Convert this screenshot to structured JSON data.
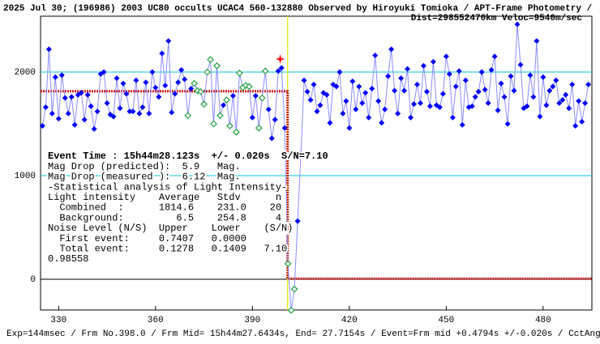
{
  "chart_data": {
    "type": "scatter",
    "title": "2025 Jul 30; (196986) 2003 UC80 occults UCAC4 560-132880 Observed by Hiroyuki Tomioka / APT-Frame Photometry /",
    "subtitle": "Dist=298552470km Veloc=9540m/sec",
    "footer": "Exp=144msec / Frm No.398.0 / Frm Mid= 15h44m27.6434s, End= 27.7154s / Event=Frm mid +0.4794s +/-0.020s / CctAngle=0.0deg",
    "annotations": [
      "Event Time : 15h44m28.123s  +/- 0.020s  S/N=7.10",
      "Mag Drop (predicted):  5.9   Mag.",
      "Mag Drop (measured ):  6.12  Mag.",
      "-Statistical analysis of Light Intensity-",
      "Light intensity    Average   Stdv      n",
      "  Combined  :      1814.6    231.0    20",
      "  Background:         6.5    254.8     4",
      "Noise Level (N/S)  Upper    Lower    (S/N)",
      "  First event:     0.7407   0.0000",
      "  Total event:     0.1278   0.1409   7.10",
      "0.98558"
    ],
    "x": [
      325,
      326,
      327,
      328,
      329,
      330,
      331,
      332,
      333,
      334,
      335,
      336,
      337,
      338,
      339,
      340,
      341,
      342,
      343,
      344,
      345,
      346,
      347,
      348,
      349,
      350,
      351,
      352,
      353,
      354,
      355,
      356,
      357,
      358,
      359,
      360,
      361,
      362,
      363,
      364,
      365,
      366,
      367,
      368,
      369,
      370,
      371,
      372,
      373,
      374,
      375,
      376,
      377,
      378,
      379,
      380,
      381,
      382,
      383,
      384,
      385,
      386,
      387,
      388,
      389,
      390,
      391,
      392,
      393,
      394,
      395,
      396,
      397,
      398,
      399,
      400,
      401,
      402,
      403,
      404,
      405,
      406,
      407,
      408,
      409,
      410,
      411,
      412,
      413,
      414,
      415,
      416,
      417,
      418,
      419,
      420,
      421,
      422,
      423,
      424,
      425,
      426,
      427,
      428,
      429,
      430,
      431,
      432,
      433,
      434,
      435,
      436,
      437,
      438,
      439,
      440,
      441,
      442,
      443,
      444,
      445,
      446,
      447,
      448,
      449,
      450,
      451,
      452,
      453,
      454,
      455,
      456,
      457,
      458,
      459,
      460,
      461,
      462,
      463,
      464,
      465,
      466,
      467,
      468,
      469,
      470,
      471,
      472,
      473,
      474,
      475,
      476,
      477,
      478,
      479,
      480,
      481,
      482,
      483,
      484,
      485,
      486,
      487,
      488,
      489,
      490,
      491,
      492,
      493,
      494
    ],
    "series": [
      {
        "color": "#0000ff",
        "line_color": "#8c8cff",
        "values": [
          1480,
          1660,
          2220,
          1600,
          1950,
          1550,
          1970,
          1750,
          1600,
          1760,
          1490,
          1780,
          1800,
          1540,
          1780,
          1670,
          1450,
          1620,
          1980,
          2000,
          1700,
          1590,
          1570,
          1940,
          1650,
          1890,
          1790,
          1620,
          1620,
          1920,
          1600,
          1660,
          1900,
          1600,
          2000,
          1850,
          1760,
          2180,
          1870,
          2300,
          1610,
          1790,
          1900,
          2020,
          1930,
          null,
          1840,
          null,
          null,
          null,
          null,
          null,
          null,
          null,
          null,
          null,
          1680,
          null,
          null,
          1770,
          null,
          null,
          null,
          null,
          null,
          1560,
          1770,
          null,
          null,
          null,
          1640,
          1360,
          1540,
          2010,
          2040,
          1460,
          null,
          null,
          null,
          560,
          1210,
          1920,
          1810,
          1730,
          1880,
          1620,
          1680,
          1800,
          1780,
          1510,
          1880,
          1860,
          2000,
          1600,
          1720,
          1460,
          1910,
          1640,
          1860,
          1700,
          1800,
          1560,
          1840,
          2160,
          1720,
          1510,
          1640,
          1960,
          2220,
          1820,
          1600,
          1940,
          1820,
          2030,
          1560,
          1690,
          1880,
          1700,
          2060,
          1810,
          1670,
          2100,
          1680,
          1660,
          1790,
          2150,
          1980,
          1560,
          1860,
          2010,
          1490,
          1920,
          1660,
          1670,
          1760,
          1810,
          2000,
          1830,
          1700,
          2020,
          2150,
          1630,
          1890,
          1760,
          1500,
          1960,
          1820,
          2460,
          2070,
          1650,
          1670,
          1970,
          1760,
          2300,
          1570,
          1950,
          1680,
          1820,
          1860,
          1920,
          1700,
          1730,
          1780,
          1650,
          1880,
          1480,
          1720,
          1520,
          1700,
          1880
        ]
      },
      {
        "color": "#20a040",
        "values": [
          null,
          null,
          null,
          null,
          null,
          null,
          null,
          null,
          null,
          null,
          null,
          null,
          null,
          null,
          null,
          null,
          null,
          null,
          null,
          null,
          null,
          null,
          null,
          null,
          null,
          null,
          null,
          null,
          null,
          null,
          null,
          null,
          null,
          null,
          null,
          null,
          null,
          null,
          null,
          null,
          null,
          null,
          null,
          null,
          null,
          1580,
          null,
          1890,
          1820,
          1810,
          1690,
          2000,
          2120,
          1500,
          2060,
          1580,
          null,
          1730,
          1480,
          null,
          1420,
          1990,
          1850,
          1870,
          1860,
          null,
          null,
          1460,
          1750,
          2010,
          null,
          null,
          null,
          null,
          null,
          null,
          150,
          -300,
          -95,
          null,
          null,
          null,
          null,
          null,
          null,
          null,
          null,
          null,
          null,
          null,
          null,
          null,
          null,
          null,
          null,
          null,
          null,
          null,
          null,
          null,
          null,
          null,
          null,
          null,
          null,
          null,
          null,
          null,
          null,
          null,
          null,
          null,
          null,
          null,
          null,
          null,
          null,
          null,
          null,
          null,
          null,
          null,
          null,
          null,
          null,
          null,
          null,
          null,
          null,
          null,
          null,
          null,
          null,
          null,
          null,
          null,
          null,
          null,
          null,
          null,
          null,
          null,
          null,
          null,
          null,
          null,
          null,
          null,
          null,
          null,
          null,
          null,
          null,
          null,
          null,
          null,
          null,
          null,
          null,
          null,
          null,
          null,
          null,
          null,
          null,
          null
        ]
      }
    ],
    "model": {
      "color": "#d02020",
      "x": [
        324.4,
        400.9,
        400.9,
        495.1
      ],
      "values": [
        1814.6,
        1814.6,
        6.5,
        6.5
      ]
    },
    "marker": {
      "x": 398.6,
      "y": 2125,
      "color": "#ff0000"
    },
    "event_x": 400.9,
    "event_color": "#e8e800",
    "grid_color": "#00c8d8",
    "zero_color": "#000000",
    "xlim": [
      324.4,
      495.1
    ],
    "ylim": [
      -297,
      2539
    ],
    "xticks": [
      330,
      360,
      390,
      420,
      450,
      480
    ],
    "yticks": [
      0,
      1000,
      2000
    ],
    "grid": true
  }
}
